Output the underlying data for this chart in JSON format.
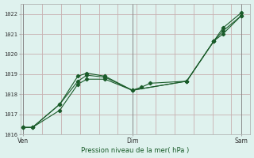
{
  "xlabel": "Pression niveau de la mer( hPa )",
  "bg_color": "#dff2ee",
  "line_color": "#1a5c2a",
  "grid_color": "#c8b0b0",
  "ylim": [
    1016,
    1022.5
  ],
  "yticks": [
    1016,
    1017,
    1018,
    1019,
    1020,
    1021,
    1022
  ],
  "xtick_labels": [
    "Ven",
    "",
    "Dim",
    "",
    "Sam"
  ],
  "xtick_positions": [
    0,
    6,
    12,
    18,
    24
  ],
  "vline_positions": [
    0,
    12,
    24
  ],
  "num_vgrid": 13,
  "line1_x": [
    0,
    1,
    4,
    6,
    7,
    9,
    12,
    13,
    14,
    18,
    21,
    22,
    24
  ],
  "line1_y": [
    1016.35,
    1016.35,
    1017.5,
    1018.65,
    1018.95,
    1018.85,
    1018.2,
    1018.35,
    1018.55,
    1018.65,
    1020.65,
    1021.15,
    1021.9
  ],
  "line2_x": [
    0,
    1,
    4,
    6,
    7,
    9,
    12,
    18,
    21,
    22,
    24
  ],
  "line2_y": [
    1016.35,
    1016.35,
    1017.5,
    1018.9,
    1019.05,
    1018.9,
    1018.2,
    1018.65,
    1020.65,
    1021.3,
    1022.05
  ],
  "line3_x": [
    0,
    1,
    4,
    6,
    7,
    9,
    12,
    18,
    21,
    22,
    24
  ],
  "line3_y": [
    1016.35,
    1016.35,
    1017.2,
    1018.5,
    1018.75,
    1018.75,
    1018.2,
    1018.65,
    1020.65,
    1021.0,
    1021.9
  ]
}
